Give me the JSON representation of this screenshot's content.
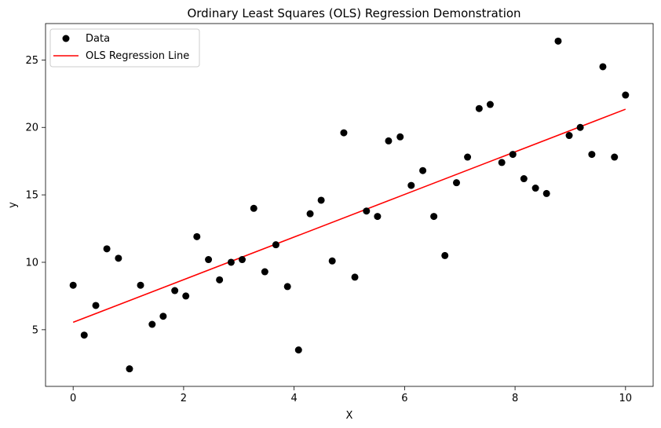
{
  "chart_data": {
    "type": "scatter",
    "title": "Ordinary Least Squares (OLS) Regression Demonstration",
    "xlabel": "X",
    "ylabel": "y",
    "xlim": [
      -0.5,
      10.5
    ],
    "ylim": [
      0.8,
      27.7
    ],
    "xticks": [
      0,
      2,
      4,
      6,
      8,
      10
    ],
    "yticks": [
      5,
      10,
      15,
      20,
      25
    ],
    "grid": false,
    "legend": {
      "placement": "top-left",
      "entries": [
        {
          "label": "Data",
          "marker": "dot",
          "color": "#000000"
        },
        {
          "label": "OLS Regression Line",
          "marker": "line",
          "color": "#ff0000"
        }
      ]
    },
    "series": [
      {
        "name": "Data",
        "kind": "scatter",
        "color": "#000000",
        "points": [
          [
            0.0,
            8.3
          ],
          [
            0.2,
            4.6
          ],
          [
            0.41,
            6.8
          ],
          [
            0.61,
            11.0
          ],
          [
            0.82,
            10.3
          ],
          [
            1.02,
            2.1
          ],
          [
            1.22,
            8.3
          ],
          [
            1.43,
            5.4
          ],
          [
            1.63,
            6.0
          ],
          [
            1.84,
            7.9
          ],
          [
            2.04,
            7.5
          ],
          [
            2.24,
            11.9
          ],
          [
            2.45,
            10.2
          ],
          [
            2.65,
            8.7
          ],
          [
            2.86,
            10.0
          ],
          [
            3.06,
            10.2
          ],
          [
            3.27,
            14.0
          ],
          [
            3.47,
            9.3
          ],
          [
            3.67,
            11.3
          ],
          [
            3.88,
            8.2
          ],
          [
            4.08,
            3.5
          ],
          [
            4.29,
            13.6
          ],
          [
            4.49,
            14.6
          ],
          [
            4.69,
            10.1
          ],
          [
            4.9,
            19.6
          ],
          [
            5.1,
            8.9
          ],
          [
            5.31,
            13.8
          ],
          [
            5.51,
            13.4
          ],
          [
            5.71,
            19.0
          ],
          [
            5.92,
            19.3
          ],
          [
            6.12,
            15.7
          ],
          [
            6.33,
            16.8
          ],
          [
            6.53,
            13.4
          ],
          [
            6.73,
            10.5
          ],
          [
            6.94,
            15.9
          ],
          [
            7.14,
            17.8
          ],
          [
            7.35,
            21.4
          ],
          [
            7.55,
            21.7
          ],
          [
            7.76,
            17.4
          ],
          [
            7.96,
            18.0
          ],
          [
            8.16,
            16.2
          ],
          [
            8.37,
            15.5
          ],
          [
            8.57,
            15.1
          ],
          [
            8.78,
            26.4
          ],
          [
            8.98,
            19.4
          ],
          [
            9.18,
            20.0
          ],
          [
            9.39,
            18.0
          ],
          [
            9.59,
            24.5
          ],
          [
            9.8,
            17.8
          ],
          [
            10.0,
            22.4
          ]
        ]
      },
      {
        "name": "OLS Regression Line",
        "kind": "line",
        "color": "#ff0000",
        "points": [
          [
            0.0,
            5.55
          ],
          [
            10.0,
            21.35
          ]
        ]
      }
    ]
  }
}
